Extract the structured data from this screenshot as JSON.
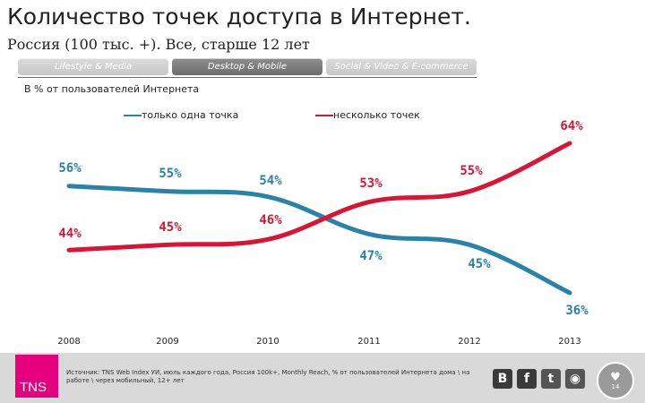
{
  "header": {
    "title": "Количество точек доступа в Интернет.",
    "subtitle": "Россия (100 тыс. +). Все, старше 12 лет"
  },
  "tabs": [
    {
      "label": "Lifestyle & Media",
      "active": false
    },
    {
      "label": "Desktop & Mobile",
      "active": true
    },
    {
      "label": "Social & Video & E-commerce",
      "active": false
    }
  ],
  "chart_data": {
    "type": "line",
    "subtitle": "В % от пользователей Интернета",
    "categories": [
      "2008",
      "2009",
      "2010",
      "2011",
      "2012",
      "2013"
    ],
    "series": [
      {
        "name": "только одна точка",
        "color": "#2a82a6",
        "values": [
          56,
          55,
          54,
          47,
          45,
          36
        ]
      },
      {
        "name": "несколько точек",
        "color": "#d91535",
        "values": [
          44,
          45,
          46,
          53,
          55,
          64
        ]
      }
    ],
    "labels": [
      [
        "56%",
        "55%",
        "54%",
        "47%",
        "45%",
        "36%"
      ],
      [
        "44%",
        "45%",
        "46%",
        "53%",
        "55%",
        "64%"
      ]
    ],
    "legend_position": "top",
    "grid": false
  },
  "footer": {
    "logo": "TNS",
    "source": "Источник: TNS Web Index УИ, июль каждого года, Россия 100k+, Monthly Reach, % от пользователей Интернета дома \\ на работе \\ через мобильный, 12+ лет",
    "social": [
      {
        "icon": "vkontakte-icon",
        "label": "В",
        "color": "#3a3a3a"
      },
      {
        "icon": "facebook-icon",
        "label": "f",
        "color": "#3b3b3b"
      },
      {
        "icon": "twitter-icon",
        "label": "t",
        "color": "#555555"
      },
      {
        "icon": "rss-icon",
        "label": "◉",
        "color": "#555555"
      }
    ],
    "page_number": "14"
  }
}
